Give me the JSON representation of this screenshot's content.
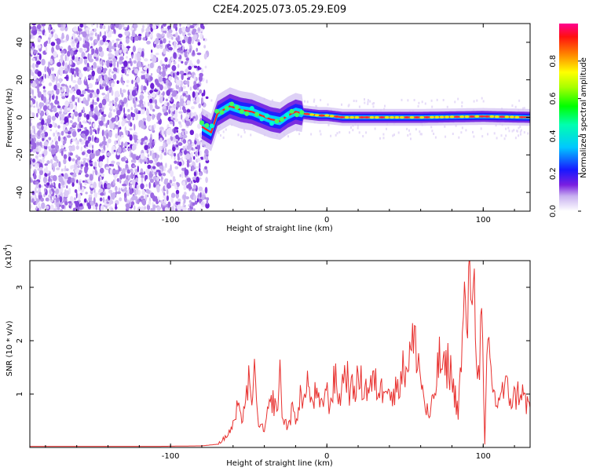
{
  "title": "C2E4.2025.073.05.29.E09",
  "chart_data": [
    {
      "type": "heatmap",
      "xlabel": "Height of straight line (km)",
      "ylabel": "Frequency (Hz)",
      "xlim": [
        -190,
        130
      ],
      "ylim": [
        -50,
        50
      ],
      "xticks": [
        -100,
        0,
        100
      ],
      "yticks": [
        -40,
        -20,
        0,
        20,
        40
      ],
      "noise_region_x": [
        -190,
        -76
      ],
      "signal_trace": [
        {
          "x": -80,
          "y": -5
        },
        {
          "x": -74,
          "y": -8
        },
        {
          "x": -70,
          "y": 2
        },
        {
          "x": -62,
          "y": 6
        },
        {
          "x": -55,
          "y": 4
        },
        {
          "x": -48,
          "y": 3
        },
        {
          "x": -42,
          "y": 1
        },
        {
          "x": -36,
          "y": -1
        },
        {
          "x": -30,
          "y": -2
        },
        {
          "x": -25,
          "y": 1
        },
        {
          "x": -20,
          "y": 3
        },
        {
          "x": -15,
          "y": 2
        },
        {
          "x": -5,
          "y": 1
        },
        {
          "x": 0,
          "y": 1
        },
        {
          "x": 10,
          "y": 0
        },
        {
          "x": 30,
          "y": 0
        },
        {
          "x": 60,
          "y": 0
        },
        {
          "x": 100,
          "y": 0.5
        },
        {
          "x": 130,
          "y": 0
        }
      ],
      "colorbar": {
        "label": "Normalized spectral amplitude",
        "range": [
          0,
          1
        ],
        "ticks": [
          0.0,
          0.2,
          0.4,
          0.6,
          0.8
        ]
      }
    },
    {
      "type": "line",
      "xlabel": "Height of straight line (km)",
      "ylabel": "SNR (10 * v/v)",
      "scale_note": "(x10",
      "scale_exp": "4",
      "scale_close": ")",
      "xlim": [
        -190,
        130
      ],
      "ylim": [
        0,
        3.5
      ],
      "xticks": [
        -100,
        0,
        100
      ],
      "yticks": [
        1,
        2,
        3
      ],
      "series": [
        {
          "color": "#e8312f",
          "points": [
            [
              -190,
              0.02
            ],
            [
              -150,
              0.02
            ],
            [
              -110,
              0.02
            ],
            [
              -80,
              0.03
            ],
            [
              -70,
              0.06
            ],
            [
              -65,
              0.18
            ],
            [
              -60,
              0.4
            ],
            [
              -57,
              0.75
            ],
            [
              -55,
              0.5
            ],
            [
              -52,
              0.9
            ],
            [
              -50,
              1.2
            ],
            [
              -48,
              0.65
            ],
            [
              -47,
              1.6
            ],
            [
              -45,
              0.8
            ],
            [
              -43,
              0.4
            ],
            [
              -40,
              0.3
            ],
            [
              -38,
              0.6
            ],
            [
              -35,
              0.9
            ],
            [
              -32,
              0.7
            ],
            [
              -30,
              1.3
            ],
            [
              -28,
              0.5
            ],
            [
              -25,
              0.4
            ],
            [
              -22,
              0.7
            ],
            [
              -20,
              0.5
            ],
            [
              -17,
              1.0
            ],
            [
              -15,
              0.7
            ],
            [
              -13,
              1.4
            ],
            [
              -10,
              0.8
            ],
            [
              -7,
              1.0
            ],
            [
              -4,
              0.7
            ],
            [
              -1,
              1.1
            ],
            [
              2,
              0.8
            ],
            [
              5,
              1.3
            ],
            [
              8,
              0.9
            ],
            [
              12,
              1.5
            ],
            [
              15,
              1.0
            ],
            [
              20,
              1.25
            ],
            [
              25,
              1.1
            ],
            [
              30,
              1.2
            ],
            [
              35,
              1.05
            ],
            [
              38,
              1.4
            ],
            [
              42,
              0.85
            ],
            [
              46,
              1.3
            ],
            [
              50,
              1.5
            ],
            [
              53,
              1.75
            ],
            [
              56,
              1.95
            ],
            [
              58,
              1.8
            ],
            [
              60,
              1.3
            ],
            [
              63,
              0.75
            ],
            [
              66,
              0.55
            ],
            [
              69,
              1.05
            ],
            [
              72,
              1.65
            ],
            [
              75,
              1.4
            ],
            [
              78,
              1.6
            ],
            [
              81,
              1.1
            ],
            [
              84,
              0.7
            ],
            [
              86,
              1.6
            ],
            [
              88,
              2.6
            ],
            [
              90,
              2.4
            ],
            [
              92,
              3.2
            ],
            [
              93,
              3.4
            ],
            [
              95,
              2.5
            ],
            [
              97,
              1.3
            ],
            [
              99,
              2.4
            ],
            [
              101,
              0.05
            ],
            [
              103,
              2.0
            ],
            [
              105,
              1.4
            ],
            [
              108,
              0.8
            ],
            [
              111,
              1.0
            ],
            [
              115,
              1.1
            ],
            [
              118,
              0.9
            ],
            [
              121,
              0.95
            ],
            [
              124,
              1.1
            ],
            [
              127,
              0.85
            ],
            [
              130,
              0.75
            ]
          ]
        }
      ]
    }
  ]
}
